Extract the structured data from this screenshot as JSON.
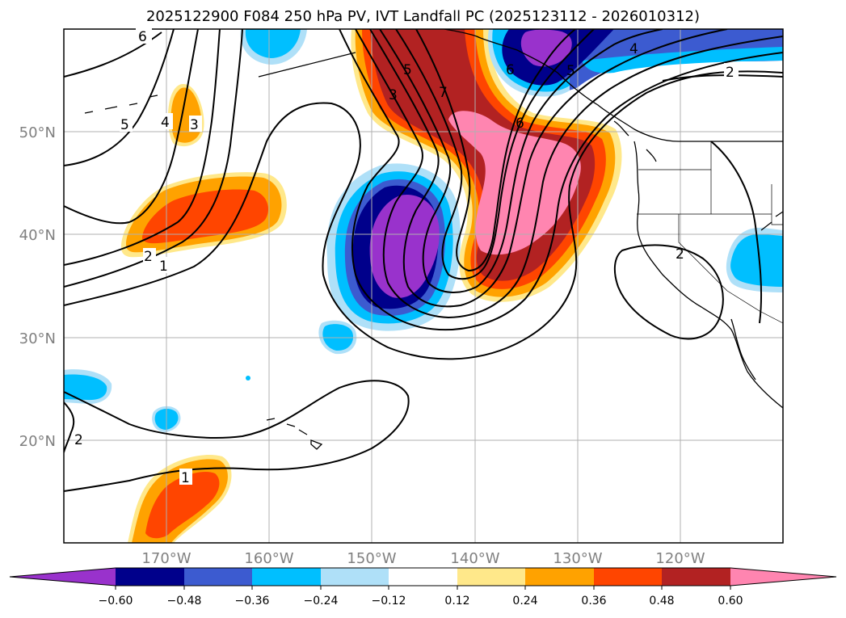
{
  "title": "2025122900 F084 250 hPa PV, IVT Landfall PC (2025123112 - 2026010312)",
  "colors": {
    "purple": "#9932cc",
    "navy": "#00008b",
    "royal_blue": "#3c5bd0",
    "sky_blue": "#00bfff",
    "light_blue": "#afe0f8",
    "white": "#ffffff",
    "light_yellow": "#ffe88a",
    "orange": "#ffa200",
    "orange_red": "#ff4500",
    "firebrick": "#b22222",
    "pink": "#ff85b0",
    "contour": "#000000",
    "grid": "#b0b0b0"
  },
  "map": {
    "projection": "cylindrical",
    "lon_range": [
      -180,
      -110
    ],
    "lat_range": [
      10,
      60
    ],
    "lat_ticks": [
      "50°N",
      "40°N",
      "30°N",
      "20°N"
    ],
    "lon_ticks": [
      "170°W",
      "160°W",
      "150°W",
      "140°W",
      "130°W",
      "120°W"
    ],
    "grid": true,
    "coastlines": true,
    "state_borders": true
  },
  "shading": {
    "field": "IVT Landfall PC",
    "regions": [
      {
        "name": "neg-low-central",
        "levels": [
          "light_blue",
          "sky_blue",
          "royal_blue",
          "navy",
          "purple"
        ],
        "center": [
          -145.5,
          38
        ]
      },
      {
        "name": "neg-low-alaska",
        "levels": [
          "light_blue",
          "sky_blue",
          "royal_blue",
          "navy",
          "purple"
        ],
        "center": [
          -133,
          57
        ]
      },
      {
        "name": "pos-high-trough",
        "levels": [
          "light_yellow",
          "orange",
          "orange_red",
          "firebrick",
          "pink"
        ],
        "center": [
          -138,
          45
        ]
      },
      {
        "name": "pos-west-band",
        "levels": [
          "light_yellow",
          "orange",
          "orange_red"
        ],
        "center": [
          -165,
          41
        ]
      },
      {
        "name": "pos-south",
        "levels": [
          "light_yellow",
          "orange",
          "orange_red"
        ],
        "center": [
          -167,
          14
        ]
      },
      {
        "name": "pos-aleutian",
        "levels": [
          "orange"
        ],
        "center": [
          -170,
          51.5
        ]
      },
      {
        "name": "neg-baja",
        "levels": [
          "light_blue",
          "sky_blue"
        ],
        "center": [
          -112,
          37
        ]
      },
      {
        "name": "neg-hawaii-n",
        "levels": [
          "light_blue",
          "sky_blue"
        ],
        "center": [
          -153,
          30.5
        ]
      },
      {
        "name": "neg-far-west",
        "levels": [
          "light_blue",
          "sky_blue"
        ],
        "center": [
          -178,
          25
        ]
      },
      {
        "name": "neg-west-small",
        "levels": [
          "light_blue",
          "sky_blue"
        ],
        "center": [
          -170,
          22
        ]
      },
      {
        "name": "neg-north-edge",
        "levels": [
          "light_blue",
          "sky_blue"
        ],
        "center": [
          -158,
          58.5
        ]
      }
    ]
  },
  "contours": {
    "field": "250 hPa PV",
    "labels": [
      "6",
      "5",
      "4",
      "3",
      "2",
      "1",
      "5",
      "3",
      "7",
      "6",
      "6",
      "5",
      "4",
      "2",
      "2",
      "1",
      "2"
    ]
  },
  "colorbar": {
    "extend": "both",
    "colors": [
      "purple",
      "navy",
      "royal_blue",
      "sky_blue",
      "light_blue",
      "white",
      "light_yellow",
      "orange",
      "orange_red",
      "firebrick",
      "pink"
    ],
    "ticks": [
      "−0.60",
      "−0.48",
      "−0.36",
      "−0.24",
      "−0.12",
      "0.12",
      "0.24",
      "0.36",
      "0.48",
      "0.60"
    ]
  }
}
